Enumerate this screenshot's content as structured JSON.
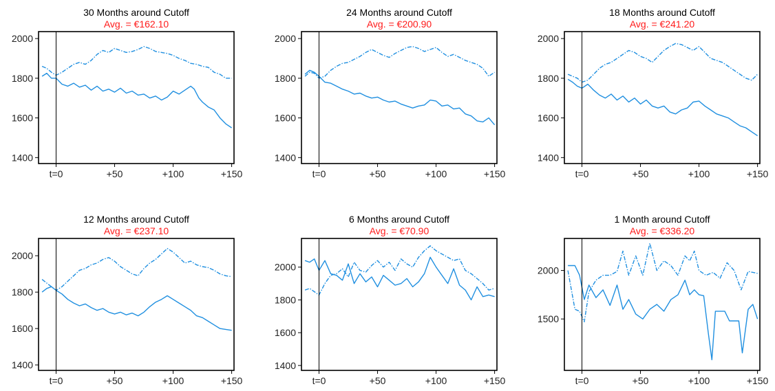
{
  "colors": {
    "series": "#1f8fe0",
    "subtitle": "#ff1a1a",
    "axis": "#000000"
  },
  "chart_data": [
    {
      "type": "line",
      "title": "30  Months around Cutoff",
      "subtitle": "Avg. =  €162.10",
      "xlim": [
        -15,
        152
      ],
      "ylim": [
        1370,
        2035
      ],
      "xticks": [
        0,
        50,
        100,
        150
      ],
      "xtick_labels": [
        "t=0",
        "+50",
        "+100",
        "+150"
      ],
      "yticks": [
        1400,
        1600,
        1800,
        2000
      ],
      "yticks_rotated": true,
      "cutoff_x": 0,
      "series": [
        {
          "style": "solid",
          "x": [
            -12,
            -8,
            -4,
            0,
            5,
            10,
            15,
            20,
            25,
            30,
            35,
            40,
            45,
            50,
            55,
            60,
            65,
            70,
            75,
            80,
            85,
            90,
            95,
            100,
            105,
            110,
            115,
            118,
            122,
            125,
            130,
            135,
            140,
            145,
            150
          ],
          "y": [
            1810,
            1825,
            1800,
            1800,
            1770,
            1760,
            1775,
            1755,
            1765,
            1740,
            1760,
            1735,
            1745,
            1730,
            1750,
            1725,
            1735,
            1715,
            1720,
            1700,
            1710,
            1690,
            1705,
            1735,
            1720,
            1740,
            1760,
            1745,
            1700,
            1680,
            1655,
            1640,
            1600,
            1570,
            1550
          ]
        },
        {
          "style": "dashdot",
          "x": [
            -12,
            -8,
            -4,
            0,
            5,
            10,
            15,
            20,
            25,
            30,
            35,
            40,
            45,
            50,
            55,
            60,
            65,
            70,
            75,
            80,
            85,
            90,
            95,
            100,
            105,
            110,
            115,
            120,
            125,
            130,
            135,
            140,
            145,
            150
          ],
          "y": [
            1860,
            1850,
            1830,
            1815,
            1830,
            1850,
            1870,
            1880,
            1870,
            1890,
            1920,
            1940,
            1930,
            1950,
            1940,
            1930,
            1935,
            1945,
            1960,
            1950,
            1935,
            1930,
            1925,
            1915,
            1900,
            1890,
            1875,
            1870,
            1860,
            1855,
            1830,
            1820,
            1800,
            1800
          ]
        }
      ]
    },
    {
      "type": "line",
      "title": "24  Months around Cutoff",
      "subtitle": "Avg. =  €200.90",
      "xlim": [
        -15,
        152
      ],
      "ylim": [
        1370,
        2035
      ],
      "xticks": [
        0,
        50,
        100,
        150
      ],
      "xtick_labels": [
        "t=0",
        "+50",
        "+100",
        "+150"
      ],
      "yticks": [
        1400,
        1600,
        1800,
        2000
      ],
      "yticks_rotated": true,
      "cutoff_x": 0,
      "series": [
        {
          "style": "solid",
          "x": [
            -12,
            -8,
            -4,
            0,
            5,
            10,
            15,
            20,
            25,
            30,
            35,
            40,
            45,
            50,
            55,
            60,
            65,
            70,
            75,
            80,
            85,
            90,
            95,
            100,
            105,
            110,
            115,
            120,
            125,
            130,
            135,
            140,
            145,
            150
          ],
          "y": [
            1820,
            1840,
            1830,
            1810,
            1780,
            1775,
            1760,
            1745,
            1735,
            1720,
            1725,
            1710,
            1700,
            1705,
            1690,
            1680,
            1685,
            1670,
            1660,
            1650,
            1660,
            1665,
            1690,
            1685,
            1660,
            1665,
            1645,
            1650,
            1620,
            1610,
            1585,
            1580,
            1600,
            1565
          ]
        },
        {
          "style": "dashdot",
          "x": [
            -12,
            -8,
            -4,
            0,
            5,
            10,
            15,
            20,
            25,
            30,
            35,
            40,
            45,
            50,
            55,
            60,
            65,
            70,
            75,
            80,
            85,
            90,
            95,
            100,
            105,
            110,
            115,
            120,
            125,
            130,
            135,
            140,
            145,
            150
          ],
          "y": [
            1810,
            1830,
            1825,
            1800,
            1810,
            1840,
            1860,
            1875,
            1880,
            1895,
            1910,
            1930,
            1945,
            1930,
            1915,
            1905,
            1925,
            1940,
            1955,
            1960,
            1950,
            1935,
            1945,
            1955,
            1930,
            1910,
            1920,
            1905,
            1890,
            1880,
            1870,
            1850,
            1810,
            1830
          ]
        }
      ]
    },
    {
      "type": "line",
      "title": "18  Months around Cutoff",
      "subtitle": "Avg. =  €241.20",
      "xlim": [
        -15,
        152
      ],
      "ylim": [
        1370,
        2035
      ],
      "xticks": [
        0,
        50,
        100,
        150
      ],
      "xtick_labels": [
        "t=0",
        "+50",
        "+100",
        "+150"
      ],
      "yticks": [
        1400,
        1600,
        1800,
        2000
      ],
      "yticks_rotated": false,
      "cutoff_x": 0,
      "series": [
        {
          "style": "solid",
          "x": [
            -12,
            -8,
            -4,
            0,
            5,
            10,
            15,
            20,
            25,
            30,
            35,
            40,
            45,
            50,
            55,
            60,
            65,
            70,
            75,
            80,
            85,
            90,
            95,
            100,
            105,
            110,
            115,
            120,
            125,
            130,
            135,
            140,
            145,
            150
          ],
          "y": [
            1795,
            1780,
            1760,
            1750,
            1770,
            1740,
            1715,
            1700,
            1720,
            1690,
            1710,
            1680,
            1700,
            1670,
            1690,
            1660,
            1650,
            1660,
            1630,
            1620,
            1640,
            1650,
            1680,
            1685,
            1660,
            1640,
            1620,
            1610,
            1600,
            1580,
            1560,
            1550,
            1530,
            1510
          ]
        },
        {
          "style": "dashdot",
          "x": [
            -12,
            -8,
            -4,
            0,
            5,
            10,
            15,
            20,
            25,
            30,
            35,
            40,
            45,
            50,
            55,
            60,
            65,
            70,
            75,
            80,
            85,
            90,
            95,
            100,
            105,
            110,
            115,
            120,
            125,
            130,
            135,
            140,
            145,
            150
          ],
          "y": [
            1820,
            1810,
            1800,
            1780,
            1790,
            1820,
            1850,
            1870,
            1880,
            1900,
            1920,
            1940,
            1930,
            1910,
            1900,
            1880,
            1910,
            1940,
            1960,
            1975,
            1970,
            1955,
            1940,
            1960,
            1930,
            1900,
            1890,
            1880,
            1860,
            1840,
            1820,
            1800,
            1790,
            1820
          ]
        }
      ]
    },
    {
      "type": "line",
      "title": "12  Months around Cutoff",
      "subtitle": "Avg. =  €237.10",
      "xlim": [
        -15,
        152
      ],
      "ylim": [
        1370,
        2095
      ],
      "xticks": [
        0,
        50,
        100,
        150
      ],
      "xtick_labels": [
        "t=0",
        "+50",
        "+100",
        "+150"
      ],
      "yticks": [
        1400,
        1600,
        1800,
        2000
      ],
      "yticks_rotated": true,
      "cutoff_x": 0,
      "series": [
        {
          "style": "solid",
          "x": [
            -12,
            -8,
            -4,
            0,
            5,
            10,
            15,
            20,
            25,
            30,
            35,
            40,
            45,
            50,
            55,
            60,
            65,
            70,
            75,
            80,
            85,
            90,
            95,
            100,
            105,
            110,
            115,
            120,
            125,
            130,
            135,
            140,
            145,
            150
          ],
          "y": [
            1800,
            1820,
            1830,
            1810,
            1790,
            1760,
            1740,
            1725,
            1735,
            1715,
            1700,
            1710,
            1690,
            1680,
            1690,
            1675,
            1685,
            1670,
            1690,
            1720,
            1745,
            1760,
            1780,
            1760,
            1740,
            1720,
            1700,
            1670,
            1660,
            1640,
            1620,
            1600,
            1595,
            1590
          ]
        },
        {
          "style": "dashdot",
          "x": [
            -12,
            -8,
            -4,
            0,
            5,
            10,
            15,
            20,
            25,
            30,
            35,
            40,
            45,
            50,
            55,
            60,
            65,
            70,
            75,
            80,
            85,
            90,
            95,
            100,
            105,
            110,
            115,
            120,
            125,
            130,
            135,
            140,
            145,
            150
          ],
          "y": [
            1870,
            1850,
            1830,
            1810,
            1830,
            1860,
            1890,
            1920,
            1930,
            1950,
            1960,
            1980,
            1990,
            1970,
            1940,
            1920,
            1900,
            1890,
            1930,
            1960,
            1980,
            2010,
            2040,
            2020,
            1990,
            1960,
            1970,
            1950,
            1940,
            1935,
            1920,
            1900,
            1890,
            1885
          ]
        }
      ]
    },
    {
      "type": "line",
      "title": "6  Months around Cutoff",
      "subtitle": "Avg. =  €70.90",
      "xlim": [
        -15,
        152
      ],
      "ylim": [
        1370,
        2175
      ],
      "xticks": [
        0,
        50,
        100,
        150
      ],
      "xtick_labels": [
        "t=0",
        "+50",
        "+100",
        "+150"
      ],
      "yticks": [
        1400,
        1600,
        1800,
        2000
      ],
      "yticks_rotated": true,
      "cutoff_x": 0,
      "series": [
        {
          "style": "solid",
          "x": [
            -12,
            -8,
            -4,
            0,
            5,
            10,
            15,
            20,
            25,
            30,
            35,
            40,
            45,
            50,
            55,
            60,
            65,
            70,
            75,
            80,
            85,
            90,
            95,
            100,
            105,
            110,
            115,
            120,
            125,
            130,
            135,
            140,
            145,
            150
          ],
          "y": [
            2040,
            2030,
            2050,
            1980,
            2040,
            1960,
            1950,
            1920,
            2020,
            1900,
            1960,
            1910,
            1940,
            1880,
            1950,
            1920,
            1890,
            1900,
            1930,
            1880,
            1910,
            1960,
            2060,
            2000,
            1950,
            1900,
            1990,
            1890,
            1860,
            1800,
            1880,
            1820,
            1830,
            1820
          ]
        },
        {
          "style": "dashdot",
          "x": [
            -12,
            -8,
            -4,
            0,
            5,
            10,
            15,
            20,
            25,
            30,
            35,
            40,
            45,
            50,
            55,
            60,
            65,
            70,
            75,
            80,
            85,
            90,
            95,
            100,
            105,
            110,
            115,
            120,
            125,
            130,
            135,
            140,
            145,
            150
          ],
          "y": [
            1860,
            1870,
            1850,
            1830,
            1900,
            1950,
            1960,
            1990,
            1940,
            2030,
            1980,
            1970,
            2010,
            2040,
            2000,
            2030,
            1980,
            2050,
            2020,
            2000,
            2060,
            2100,
            2130,
            2100,
            2080,
            2060,
            2040,
            2050,
            1980,
            1960,
            1930,
            1900,
            1860,
            1870
          ]
        }
      ]
    },
    {
      "type": "line",
      "title": "1  Month around Cutoff",
      "subtitle": "Avg. =  €336.20",
      "xlim": [
        -15,
        152
      ],
      "ylim": [
        970,
        2330
      ],
      "xticks": [
        0,
        50,
        100,
        150
      ],
      "xtick_labels": [
        "t=0",
        "+50",
        "+100",
        "+150"
      ],
      "yticks": [
        1500,
        2000
      ],
      "yticks_rotated": false,
      "cutoff_x": 0,
      "series": [
        {
          "style": "solid",
          "x": [
            -12,
            -6,
            -2,
            2,
            6,
            12,
            18,
            24,
            30,
            35,
            40,
            46,
            52,
            58,
            64,
            70,
            76,
            82,
            88,
            92,
            96,
            100,
            104,
            108,
            111,
            114,
            122,
            126,
            134,
            137,
            142,
            146,
            150
          ],
          "y": [
            2050,
            2050,
            1950,
            1700,
            1850,
            1720,
            1800,
            1640,
            1850,
            1600,
            1700,
            1550,
            1500,
            1600,
            1650,
            1580,
            1700,
            1750,
            1900,
            1750,
            1800,
            1750,
            1740,
            1350,
            1080,
            1580,
            1580,
            1480,
            1480,
            1150,
            1600,
            1650,
            1500
          ]
        },
        {
          "style": "dashdot",
          "x": [
            -12,
            -6,
            -2,
            2,
            6,
            12,
            18,
            24,
            30,
            35,
            40,
            46,
            52,
            58,
            64,
            70,
            76,
            82,
            88,
            92,
            96,
            100,
            106,
            112,
            118,
            124,
            130,
            136,
            142,
            150
          ],
          "y": [
            2000,
            1600,
            1580,
            1470,
            1780,
            1900,
            1950,
            1950,
            1990,
            2200,
            1950,
            2150,
            1950,
            2280,
            2000,
            2100,
            2050,
            1950,
            2150,
            2100,
            2200,
            2000,
            1950,
            1980,
            1920,
            2080,
            2000,
            1800,
            1990,
            1970
          ]
        }
      ]
    }
  ]
}
